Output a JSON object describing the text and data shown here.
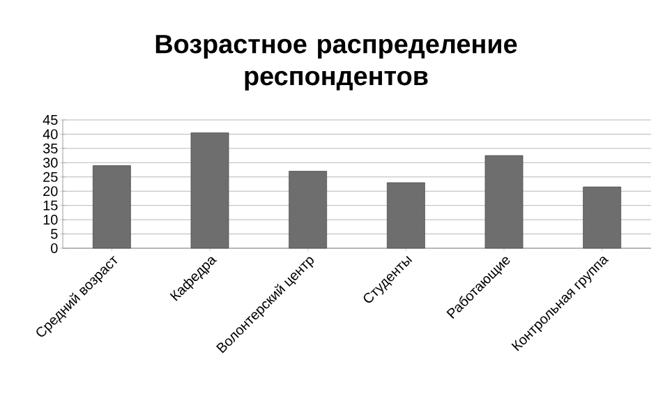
{
  "chart_data": {
    "type": "bar",
    "title": "Возрастное распределение респондентов",
    "categories": [
      "Средний возраст",
      "Кафедра",
      "Волонтерский центр",
      "Студенты",
      "Работающие",
      "Контрольная группа"
    ],
    "values": [
      29,
      40.5,
      27,
      23,
      32.5,
      21.5
    ],
    "color": "#6e6e6e",
    "ylim": [
      0,
      45
    ],
    "yticks": [
      0,
      5,
      10,
      15,
      20,
      25,
      30,
      35,
      40,
      45
    ],
    "grid": "y"
  }
}
